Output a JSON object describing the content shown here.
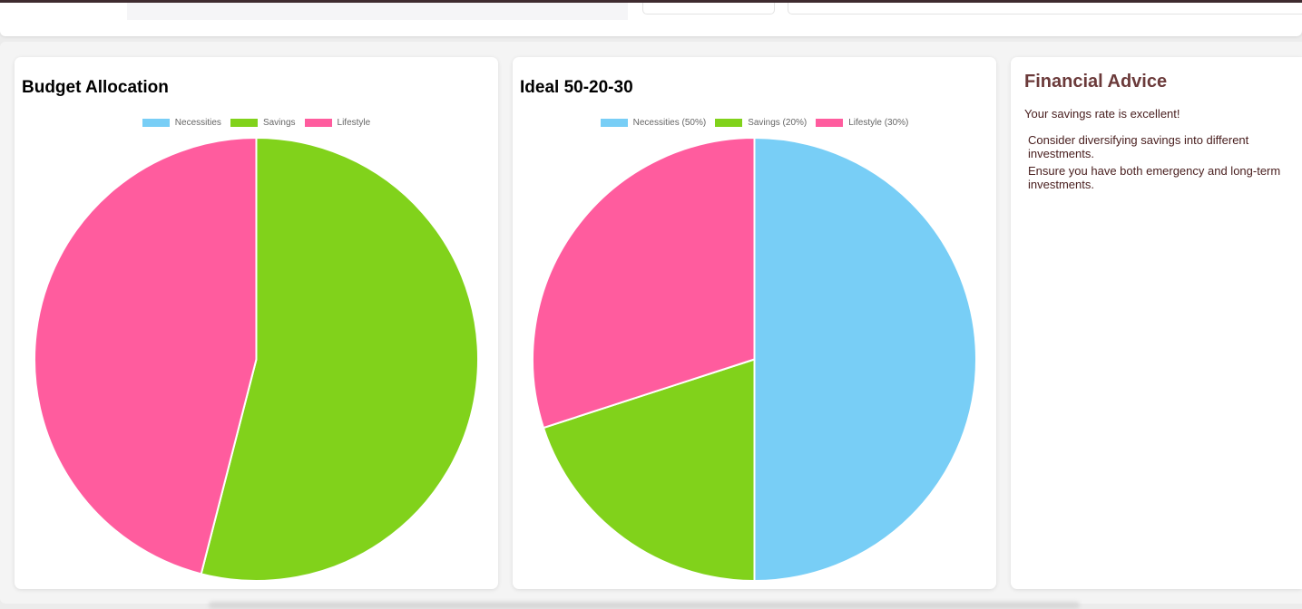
{
  "colors": {
    "necessities": "#78cef6",
    "savings": "#81d21b",
    "lifestyle": "#ff5c9e"
  },
  "budget_card": {
    "title": "Budget Allocation"
  },
  "ideal_card": {
    "title": "Ideal 50-20-30"
  },
  "advice": {
    "title": "Financial Advice",
    "summary": "Your savings rate is excellent!",
    "items": [
      "Consider diversifying savings into different investments.",
      "Ensure you have both emergency and long-term investments."
    ]
  },
  "chart_data": [
    {
      "type": "pie",
      "title": "Budget Allocation",
      "categories": [
        "Necessities",
        "Savings",
        "Lifestyle"
      ],
      "values": [
        0,
        54,
        46
      ],
      "legend": "top"
    },
    {
      "type": "pie",
      "title": "Ideal 50-20-30",
      "categories": [
        "Necessities (50%)",
        "Savings (20%)",
        "Lifestyle (30%)"
      ],
      "values": [
        50,
        20,
        30
      ],
      "legend": "top"
    }
  ]
}
